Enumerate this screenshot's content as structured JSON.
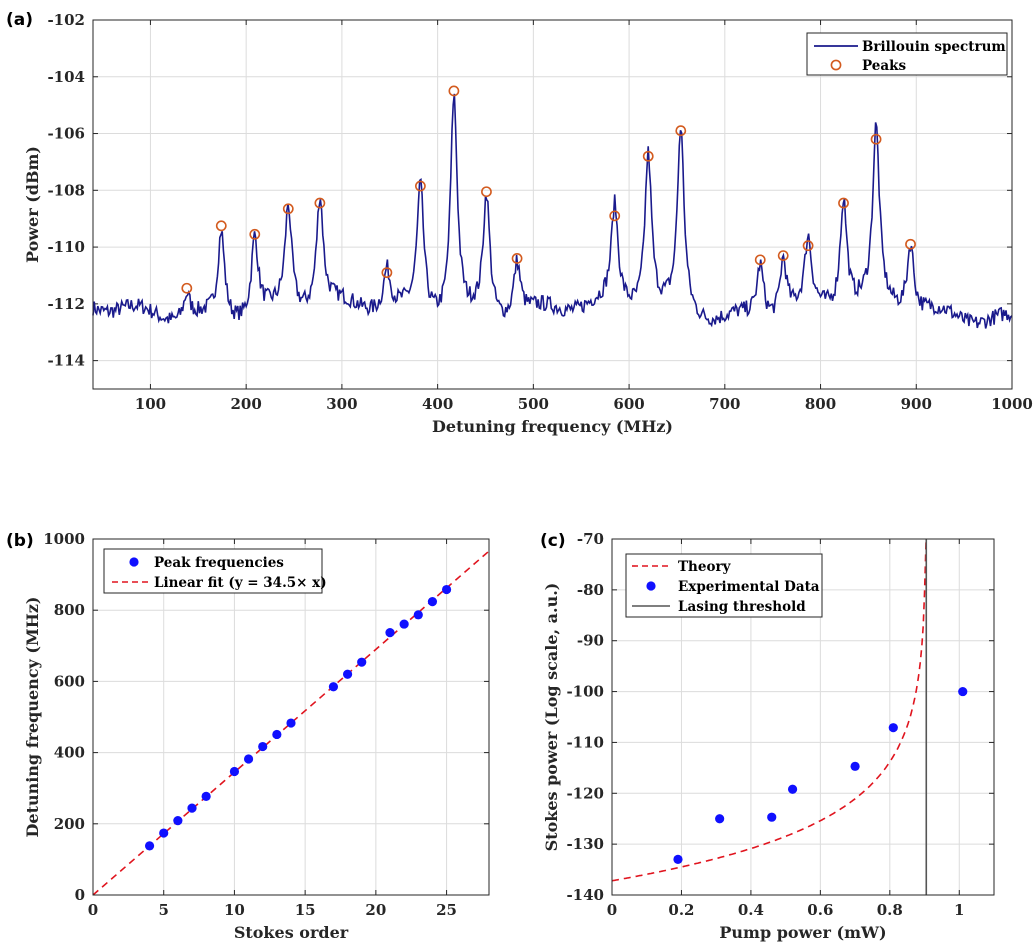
{
  "chart_data": [
    {
      "id": "a",
      "panel_label": "(a)",
      "type": "line",
      "xlabel": "Detuning frequency (MHz)",
      "ylabel": "Power (dBm)",
      "xlim": [
        40,
        1000
      ],
      "ylim": [
        -115,
        -102
      ],
      "xticks": [
        100,
        200,
        300,
        400,
        500,
        600,
        700,
        800,
        900,
        1000
      ],
      "yticks": [
        -114,
        -112,
        -110,
        -108,
        -106,
        -104,
        -102
      ],
      "grid": true,
      "legend_position": "top-right",
      "colors": {
        "line": "#1a1a8c",
        "peaks": "#d35b1f"
      },
      "series": [
        {
          "name": "Brillouin spectrum",
          "kind": "line",
          "baseline": -112.3
        },
        {
          "name": "Peaks",
          "kind": "marker",
          "x": [
            138,
            174,
            209,
            244,
            277,
            347,
            382,
            417,
            451,
            483,
            585,
            620,
            654,
            737,
            761,
            787,
            824,
            858,
            894
          ],
          "y": [
            -111.45,
            -109.25,
            -109.55,
            -108.65,
            -108.45,
            -110.9,
            -107.85,
            -104.5,
            -108.05,
            -110.4,
            -108.9,
            -106.8,
            -105.9,
            -110.45,
            -110.3,
            -109.95,
            -108.45,
            -106.2,
            -109.9
          ]
        }
      ]
    },
    {
      "id": "b",
      "panel_label": "(b)",
      "type": "scatter",
      "xlabel": "Stokes order",
      "ylabel": "Detuning frequency (MHz)",
      "xlim": [
        0,
        28
      ],
      "ylim": [
        0,
        1000
      ],
      "xticks": [
        0,
        5,
        10,
        15,
        20,
        25
      ],
      "yticks": [
        0,
        200,
        400,
        600,
        800,
        1000
      ],
      "grid": true,
      "legend_position": "top-left",
      "colors": {
        "points": "#1010ff",
        "fit": "#e0141e"
      },
      "series": [
        {
          "name": "Peak frequencies",
          "kind": "marker",
          "x": [
            4,
            5,
            6,
            7,
            8,
            10,
            11,
            12,
            13,
            14,
            17,
            18,
            19,
            21,
            22,
            23,
            24,
            25
          ],
          "y": [
            138,
            174,
            209,
            244,
            277,
            347,
            382,
            417,
            451,
            483,
            585,
            620,
            654,
            737,
            761,
            787,
            824,
            858
          ]
        },
        {
          "name": "Linear fit (y = 34.5× x)",
          "kind": "dashed-line",
          "slope": 34.5
        }
      ]
    },
    {
      "id": "c",
      "panel_label": "(c)",
      "type": "scatter",
      "xlabel": "Pump power (mW)",
      "ylabel": "Stokes power (Log scale, a.u.)",
      "xlim": [
        0,
        1.1
      ],
      "ylim": [
        -140,
        -70
      ],
      "xticks": [
        0,
        0.2,
        0.4,
        0.6,
        0.8,
        1
      ],
      "xticklabels": [
        "0",
        "0.2",
        "0.4",
        "0.6",
        "0.8",
        "1"
      ],
      "yticks": [
        -140,
        -130,
        -120,
        -110,
        -100,
        -90,
        -80,
        -70
      ],
      "grid": true,
      "legend_position": "top-left",
      "colors": {
        "theory": "#e0141e",
        "points": "#1010ff",
        "threshold": "#555555"
      },
      "threshold_x": 0.905,
      "series": [
        {
          "name": "Theory",
          "kind": "dashed-line"
        },
        {
          "name": "Experimental Data",
          "kind": "marker",
          "x": [
            0.19,
            0.31,
            0.46,
            0.52,
            0.7,
            0.81,
            1.01
          ],
          "y": [
            -133,
            -125,
            -124.7,
            -119.2,
            -114.7,
            -107.1,
            -100
          ]
        },
        {
          "name": "Lasing threshold",
          "kind": "vertical-line"
        }
      ]
    }
  ]
}
